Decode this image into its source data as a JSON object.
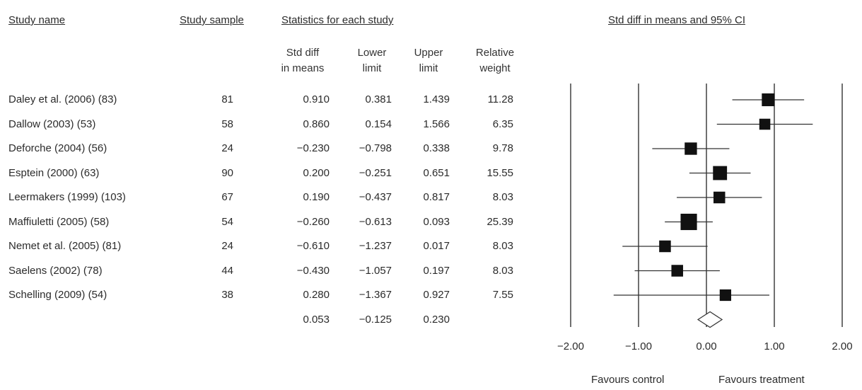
{
  "headers": {
    "study_name": "Study name",
    "study_sample": "Study sample",
    "statistics": "Statistics for each study",
    "plot_title": "Std diff in means and 95% CI"
  },
  "subheaders": {
    "std_diff": [
      "Std diff",
      "in means"
    ],
    "lower": [
      "Lower",
      "limit"
    ],
    "upper": [
      "Upper",
      "limit"
    ],
    "weight": [
      "Relative",
      "weight"
    ]
  },
  "studies": [
    {
      "name": "Daley et al. (2006) (83)",
      "sample": "81",
      "sdm": "0.910",
      "lower": "0.381",
      "upper": "1.439",
      "weight": "11.28"
    },
    {
      "name": "Dallow (2003) (53)",
      "sample": "58",
      "sdm": "0.860",
      "lower": "0.154",
      "upper": "1.566",
      "weight": "6.35"
    },
    {
      "name": "Deforche (2004) (56)",
      "sample": "24",
      "sdm": "−0.230",
      "lower": "−0.798",
      "upper": "0.338",
      "weight": "9.78"
    },
    {
      "name": "Esptein (2000) (63)",
      "sample": "90",
      "sdm": "0.200",
      "lower": "−0.251",
      "upper": "0.651",
      "weight": "15.55"
    },
    {
      "name": "Leermakers (1999) (103)",
      "sample": "67",
      "sdm": "0.190",
      "lower": "−0.437",
      "upper": "0.817",
      "weight": "8.03"
    },
    {
      "name": "Maffiuletti (2005) (58)",
      "sample": "54",
      "sdm": "−0.260",
      "lower": "−0.613",
      "upper": "0.093",
      "weight": "25.39"
    },
    {
      "name": "Nemet et al. (2005) (81)",
      "sample": "24",
      "sdm": "−0.610",
      "lower": "−1.237",
      "upper": "0.017",
      "weight": "8.03"
    },
    {
      "name": "Saelens (2002) (78)",
      "sample": "44",
      "sdm": "−0.430",
      "lower": "−1.057",
      "upper": "0.197",
      "weight": "8.03"
    },
    {
      "name": "Schelling (2009) (54)",
      "sample": "38",
      "sdm": "0.280",
      "lower": "−1.367",
      "upper": "0.927",
      "weight": "7.55"
    }
  ],
  "summary": {
    "sdm": "0.053",
    "lower": "−0.125",
    "upper": "0.230"
  },
  "footer": {
    "left": "Favours control",
    "right": "Favours treatment"
  },
  "chart_data": {
    "type": "forest",
    "title": "Std diff in means and 95% CI",
    "xlim": [
      -2,
      2
    ],
    "ticks": [
      -2,
      -1,
      0,
      1,
      2
    ],
    "tick_labels": [
      "−2.00",
      "−1.00",
      "0.00",
      "1.00",
      "2.00"
    ],
    "points": [
      {
        "est": 0.91,
        "lo": 0.381,
        "hi": 1.439,
        "w": 11.28
      },
      {
        "est": 0.86,
        "lo": 0.154,
        "hi": 1.566,
        "w": 6.35
      },
      {
        "est": -0.23,
        "lo": -0.798,
        "hi": 0.338,
        "w": 9.78
      },
      {
        "est": 0.2,
        "lo": -0.251,
        "hi": 0.651,
        "w": 15.55
      },
      {
        "est": 0.19,
        "lo": -0.437,
        "hi": 0.817,
        "w": 8.03
      },
      {
        "est": -0.26,
        "lo": -0.613,
        "hi": 0.093,
        "w": 25.39
      },
      {
        "est": -0.61,
        "lo": -1.237,
        "hi": 0.017,
        "w": 8.03
      },
      {
        "est": -0.43,
        "lo": -1.057,
        "hi": 0.197,
        "w": 8.03
      },
      {
        "est": 0.28,
        "lo": -1.367,
        "hi": 0.927,
        "w": 7.55
      }
    ],
    "summary": {
      "est": 0.053,
      "lo": -0.125,
      "hi": 0.23
    }
  }
}
